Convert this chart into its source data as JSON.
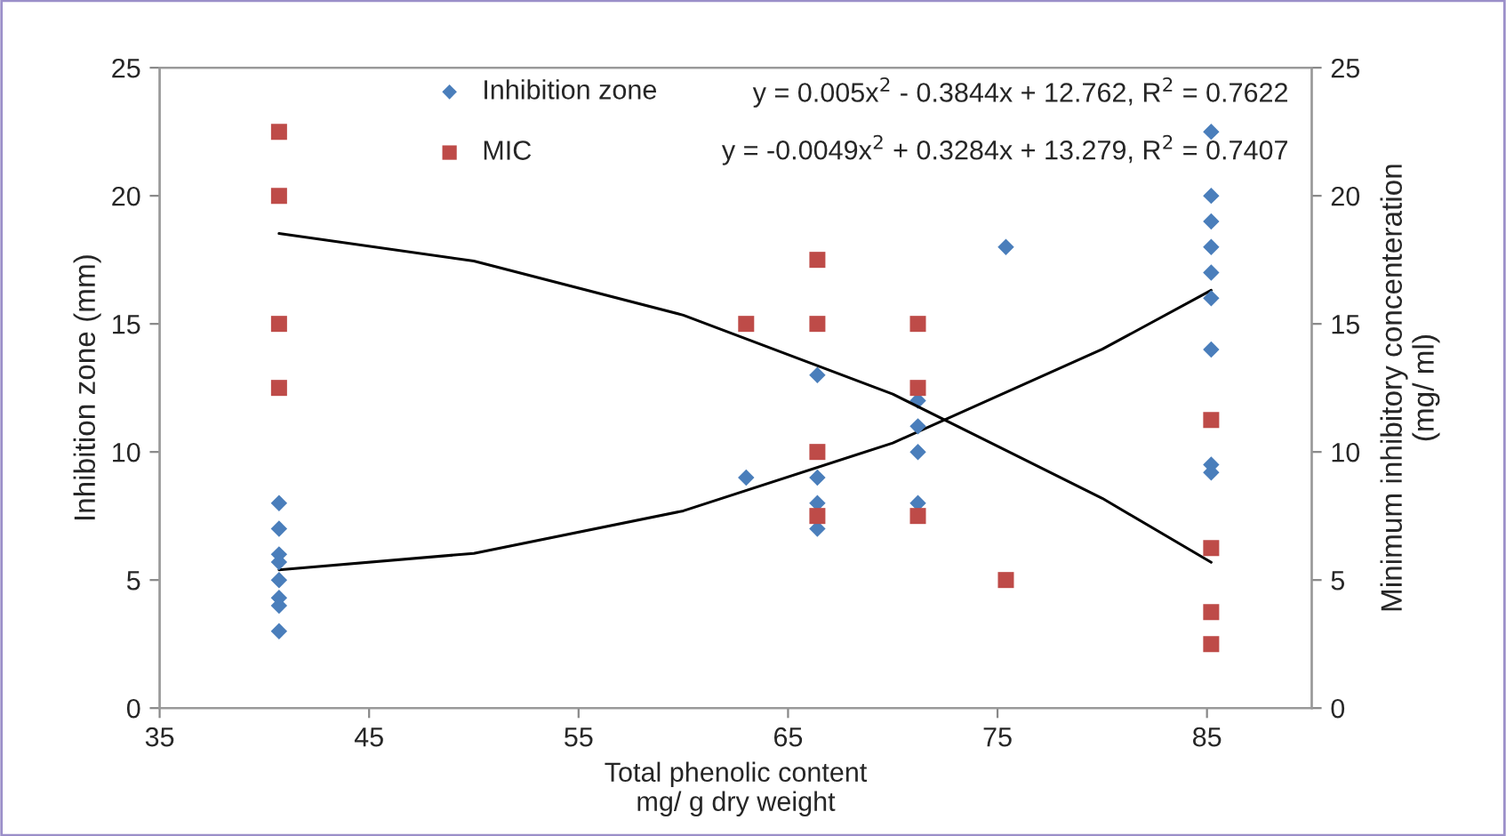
{
  "chart_data": {
    "type": "scatter",
    "xlabel": "Total phenolic content\nmg/ g dry weight",
    "ylabel": "Inhibition zone (mm)",
    "y2label": "Minimum inhibitory concenteration\n(mg/ ml)",
    "xlim": [
      35,
      90
    ],
    "xticks": [
      35,
      45,
      55,
      65,
      75,
      85
    ],
    "ylim": [
      0,
      25
    ],
    "yticks": [
      0,
      5,
      10,
      15,
      20,
      25
    ],
    "y2lim": [
      0,
      25
    ],
    "y2ticks": [
      0,
      5,
      10,
      15,
      20,
      25
    ],
    "grid": false,
    "legend": "top",
    "annotations": [
      "y = 0.005x$^{2}$ - 0.3844x + 12.762, R$^{2}$ = 0.7622",
      "y = -0.0049x$^{2}$ + 0.3284x + 13.279, R$^{2}$ = 0.7407"
    ],
    "series": [
      {
        "name": "Inhibition zone",
        "marker": "diamond",
        "color": "#4a7ebb",
        "x": [
          40.7,
          40.7,
          40.7,
          40.7,
          40.7,
          40.7,
          40.7,
          40.7,
          63,
          66.4,
          66.4,
          66.4,
          66.4,
          71.2,
          71.2,
          71.2,
          71.2,
          75.4,
          85.2,
          85.2,
          85.2,
          85.2,
          85.2,
          85.2,
          85.2,
          85.2,
          85.2
        ],
        "values": [
          8,
          7,
          6,
          5.7,
          5,
          4.3,
          4,
          3,
          9,
          13,
          9,
          8,
          7,
          12,
          11,
          10,
          8,
          18,
          22.5,
          20,
          19,
          18,
          17,
          16,
          14,
          9.5,
          9.2
        ]
      },
      {
        "name": "MIC",
        "marker": "square",
        "axis": "y2",
        "color": "#be4b48",
        "x": [
          40.7,
          40.7,
          40.7,
          40.7,
          63,
          66.4,
          66.4,
          66.4,
          66.4,
          71.2,
          71.2,
          71.2,
          75.4,
          85.2,
          85.2,
          85.2,
          85.2
        ],
        "values": [
          22.5,
          20,
          15,
          12.5,
          15,
          17.5,
          15,
          10,
          7.5,
          15,
          12.5,
          7.5,
          5,
          11.25,
          6.25,
          3.75,
          2.5
        ]
      },
      {
        "type": "line",
        "color": "#000000",
        "x": [
          40.7,
          50,
          60,
          70,
          80,
          85.2
        ],
        "values": [
          5.4,
          6.04,
          7.7,
          10.35,
          14.01,
          16.31
        ]
      },
      {
        "type": "line",
        "axis": "y2",
        "color": "#000000",
        "x": [
          40.7,
          50,
          60,
          70,
          80,
          85.2
        ],
        "values": [
          18.53,
          17.45,
          15.34,
          12.26,
          8.19,
          5.69
        ]
      }
    ]
  }
}
